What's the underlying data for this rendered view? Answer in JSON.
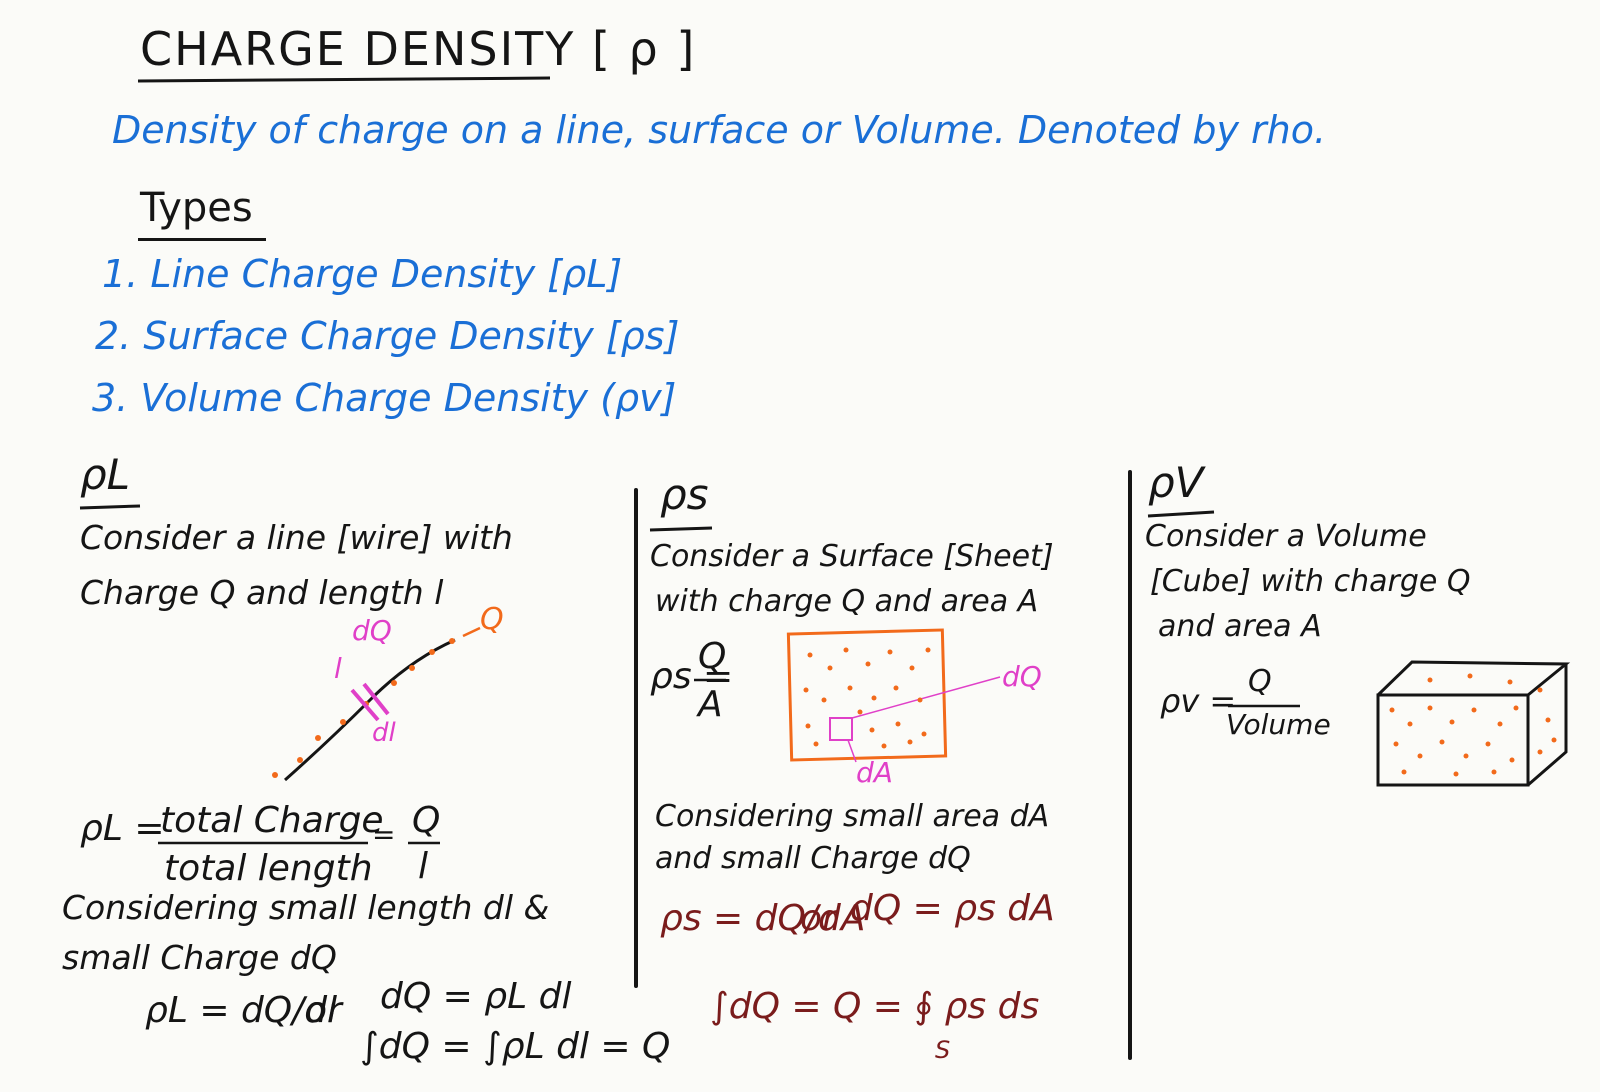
{
  "title": "CHARGE DENSITY [ ρ ]",
  "definition": "Density of charge on a line, surface or Volume. Denoted by rho.",
  "types_heading": "Types",
  "types": [
    "1. Line Charge Density [ρL]",
    "2. Surface Charge Density [ρs]",
    "3. Volume Charge Density (ρv]"
  ],
  "line_section": {
    "heading": "ρL",
    "description_line1": "Consider a line [wire] with",
    "description_line2": "Charge Q and length l",
    "label_Q": "Q",
    "label_dQ": "dQ",
    "label_l": "l",
    "label_dl": "dl",
    "formula_lhs": "ρL =",
    "formula_num": "total Charge",
    "formula_den": "total length",
    "formula_rhs_num": "Q",
    "formula_rhs_den": "l",
    "considering_line1": "Considering small length dl &",
    "considering_line2": "small Charge dQ",
    "diff_formula": "ρL = dQ/dl",
    "or": "or",
    "diff_formula2": "dQ = ρL dl",
    "integral": "∫dQ = ∫ρL dl = Q"
  },
  "surface_section": {
    "heading": "ρs",
    "description_line1": "Consider a Surface [Sheet]",
    "description_line2": "with charge Q and area A",
    "formula_lhs": "ρs =",
    "formula_num": "Q",
    "formula_den": "A",
    "label_dQ": "dQ",
    "label_dA": "dA",
    "considering_line1": "Considering small area dA",
    "considering_line2": "and small Charge dQ",
    "diff_formula": "ρs = dQ/dA",
    "or": "or",
    "diff_formula2": "dQ = ρs dA",
    "integral": "∫dQ = Q = ∮ ρs ds",
    "integral_sub": "S"
  },
  "volume_section": {
    "heading": "ρV",
    "description_line1": "Consider a Volume",
    "description_line2": "[Cube] with charge Q",
    "description_line3": "and area A",
    "formula_lhs": "ρv =",
    "formula_num": "Q",
    "formula_den": "Volume"
  },
  "colors": {
    "ink": "#151515",
    "blue": "#1a6fd6",
    "orange": "#f26a1b",
    "magenta": "#e040c8",
    "maroon": "#7a1c1c"
  }
}
